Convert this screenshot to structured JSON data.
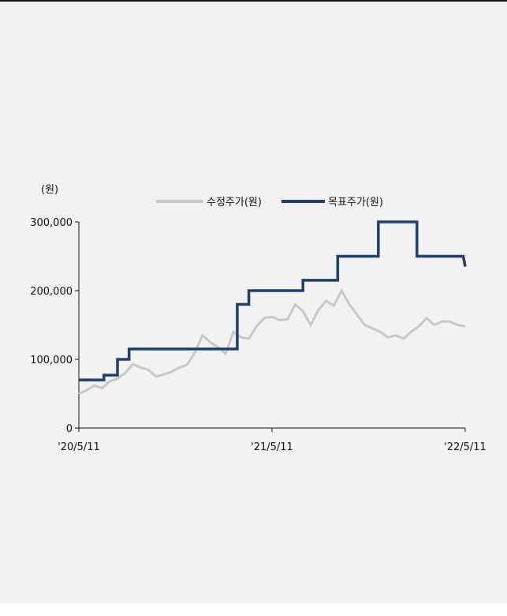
{
  "chart_data": {
    "type": "line",
    "unit_label": "(원)",
    "x_tick_labels": [
      "'20/5/11",
      "'21/5/11",
      "'22/5/11"
    ],
    "ylim": [
      0,
      300000
    ],
    "y_ticks": [
      0,
      100000,
      200000,
      300000
    ],
    "y_tick_labels": [
      "0",
      "100,000",
      "200,000",
      "300,000"
    ],
    "grid": false,
    "legend_position": "top",
    "series": [
      {
        "name": "수정주가(원)",
        "color": "#c8c8c8",
        "x": [
          0,
          0.02,
          0.04,
          0.06,
          0.08,
          0.1,
          0.12,
          0.14,
          0.16,
          0.18,
          0.2,
          0.22,
          0.24,
          0.26,
          0.28,
          0.3,
          0.32,
          0.34,
          0.36,
          0.38,
          0.4,
          0.42,
          0.44,
          0.46,
          0.48,
          0.5,
          0.52,
          0.54,
          0.56,
          0.58,
          0.6,
          0.62,
          0.64,
          0.66,
          0.68,
          0.7,
          0.72,
          0.74,
          0.76,
          0.78,
          0.8,
          0.82,
          0.84,
          0.86,
          0.88,
          0.9,
          0.92,
          0.94,
          0.96,
          0.98,
          1.0
        ],
        "y": [
          50000,
          55000,
          62000,
          58000,
          68000,
          72000,
          80000,
          93000,
          88000,
          85000,
          75000,
          78000,
          82000,
          88000,
          92000,
          110000,
          135000,
          125000,
          118000,
          108000,
          140000,
          132000,
          130000,
          148000,
          160000,
          162000,
          157000,
          158000,
          180000,
          170000,
          150000,
          172000,
          185000,
          178000,
          200000,
          180000,
          165000,
          150000,
          145000,
          140000,
          132000,
          135000,
          130000,
          140000,
          148000,
          160000,
          150000,
          155000,
          155000,
          150000,
          148000
        ]
      },
      {
        "name": "목표주가(원)",
        "color": "#1f3f70",
        "x": [
          0,
          0.065,
          0.065,
          0.1,
          0.1,
          0.13,
          0.13,
          0.41,
          0.41,
          0.44,
          0.44,
          0.58,
          0.58,
          0.67,
          0.67,
          0.775,
          0.775,
          0.875,
          0.875,
          0.995,
          1.0
        ],
        "y": [
          70000,
          70000,
          77000,
          77000,
          100000,
          100000,
          115000,
          115000,
          180000,
          180000,
          200000,
          200000,
          215000,
          215000,
          250000,
          250000,
          300000,
          300000,
          250000,
          250000,
          235000
        ]
      }
    ]
  }
}
